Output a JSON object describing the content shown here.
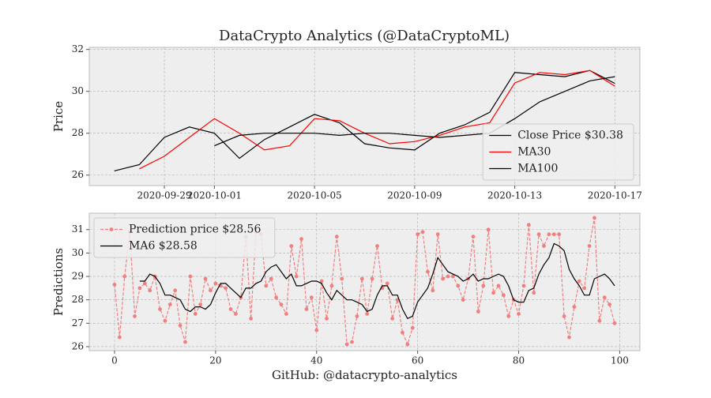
{
  "title": "DataCrypto Analytics (@DataCryptoML)",
  "chart_data": [
    {
      "type": "line",
      "ylabel": "Price",
      "grid": true,
      "legend": "lower right",
      "x": [
        "2020-09-27",
        "2020-09-28",
        "2020-09-29",
        "2020-09-30",
        "2020-10-01",
        "2020-10-02",
        "2020-10-03",
        "2020-10-04",
        "2020-10-05",
        "2020-10-06",
        "2020-10-07",
        "2020-10-08",
        "2020-10-09",
        "2020-10-10",
        "2020-10-11",
        "2020-10-12",
        "2020-10-13",
        "2020-10-14",
        "2020-10-15",
        "2020-10-16",
        "2020-10-17"
      ],
      "xlim": [
        "2020-09-26",
        "2020-10-18"
      ],
      "xticks": [
        "2020-09-29",
        "2020-10-01",
        "2020-10-05",
        "2020-10-09",
        "2020-10-13",
        "2020-10-17"
      ],
      "ylim": [
        25.5,
        32.1
      ],
      "yticks": [
        26,
        28,
        30,
        32
      ],
      "series": [
        {
          "name": "Close Price $30.38",
          "color": "#000000",
          "values": [
            26.2,
            26.5,
            27.8,
            28.3,
            28.0,
            26.8,
            27.7,
            28.3,
            28.9,
            28.5,
            27.5,
            27.3,
            27.2,
            28.0,
            28.4,
            29.0,
            30.9,
            30.8,
            30.7,
            31.0,
            30.38
          ]
        },
        {
          "name": "MA30",
          "color": "#ff0000",
          "values": [
            null,
            26.3,
            26.9,
            27.8,
            28.7,
            28.0,
            27.2,
            27.4,
            28.7,
            28.6,
            28.0,
            27.5,
            27.6,
            27.9,
            28.3,
            28.5,
            30.4,
            30.9,
            30.8,
            31.0,
            30.25
          ]
        },
        {
          "name": "MA100",
          "color": "#000000",
          "values": [
            null,
            null,
            null,
            null,
            27.4,
            27.9,
            28.0,
            28.0,
            28.0,
            27.9,
            28.0,
            28.0,
            27.9,
            27.8,
            27.9,
            28.0,
            28.7,
            29.5,
            30.0,
            30.5,
            30.7
          ]
        }
      ]
    },
    {
      "type": "line",
      "ylabel": "Predictions",
      "xlabel": "GitHub: @datacrypto-analytics",
      "grid": true,
      "legend": "upper left",
      "x": [
        0,
        1,
        2,
        3,
        4,
        5,
        6,
        7,
        8,
        9,
        10,
        11,
        12,
        13,
        14,
        15,
        16,
        17,
        18,
        19,
        20,
        21,
        22,
        23,
        24,
        25,
        26,
        27,
        28,
        29,
        30,
        31,
        32,
        33,
        34,
        35,
        36,
        37,
        38,
        39,
        40,
        41,
        42,
        43,
        44,
        45,
        46,
        47,
        48,
        49,
        50,
        51,
        52,
        53,
        54,
        55,
        56,
        57,
        58,
        59,
        60,
        61,
        62,
        63,
        64,
        65,
        66,
        67,
        68,
        69,
        70,
        71,
        72,
        73,
        74,
        75,
        76,
        77,
        78,
        79,
        80,
        81,
        82,
        83,
        84,
        85,
        86,
        87,
        88,
        89,
        90,
        91,
        92,
        93,
        94,
        95,
        96,
        97,
        98,
        99
      ],
      "xlim": [
        -5,
        104
      ],
      "xticks": [
        0,
        20,
        40,
        60,
        80,
        100
      ],
      "ylim": [
        25.83,
        31.7
      ],
      "yticks": [
        26,
        27,
        28,
        29,
        30,
        31
      ],
      "series": [
        {
          "name": "Prediction price $28.56",
          "color": "#f08080",
          "linestyle": "dashed",
          "marker": true,
          "values": [
            28.65,
            26.4,
            29.0,
            30.9,
            27.3,
            28.5,
            28.7,
            28.4,
            29.0,
            27.6,
            27.1,
            27.8,
            28.4,
            26.9,
            26.2,
            29.0,
            27.4,
            27.8,
            28.9,
            28.4,
            28.7,
            28.6,
            28.5,
            27.6,
            27.4,
            28.1,
            30.7,
            27.2,
            30.9,
            30.8,
            28.6,
            28.9,
            28.1,
            27.8,
            27.4,
            30.3,
            29.0,
            30.6,
            27.6,
            28.1,
            26.7,
            28.8,
            27.2,
            28.6,
            30.7,
            28.9,
            26.1,
            26.2,
            27.3,
            28.9,
            27.4,
            28.9,
            30.3,
            28.5,
            28.7,
            27.2,
            28.0,
            26.6,
            26.1,
            26.8,
            30.8,
            30.9,
            29.2,
            28.4,
            30.8,
            28.9,
            29.0,
            29.0,
            28.6,
            28.0,
            28.9,
            30.7,
            27.5,
            28.6,
            31.0,
            28.3,
            28.6,
            28.2,
            27.3,
            28.0,
            27.4,
            28.6,
            31.2,
            28.3,
            30.8,
            30.3,
            30.8,
            30.8,
            30.8,
            27.3,
            26.4,
            27.7,
            28.8,
            28.5,
            30.3,
            31.5,
            27.1,
            28.1,
            27.8,
            27.0
          ]
        },
        {
          "name": "MA6 $28.58",
          "color": "#000000",
          "values": [
            null,
            null,
            null,
            null,
            null,
            28.8,
            28.8,
            29.1,
            29.0,
            28.7,
            28.2,
            28.2,
            28.1,
            28.0,
            27.6,
            27.5,
            27.7,
            27.7,
            27.6,
            27.8,
            28.3,
            28.7,
            28.7,
            28.5,
            28.3,
            28.1,
            28.5,
            28.5,
            28.7,
            28.8,
            29.2,
            29.4,
            29.5,
            29.2,
            28.9,
            29.1,
            28.6,
            28.6,
            28.7,
            28.8,
            28.8,
            28.7,
            28.3,
            28.0,
            28.4,
            28.2,
            28.0,
            28.0,
            27.9,
            27.8,
            27.5,
            27.6,
            28.2,
            28.6,
            28.6,
            28.2,
            28.2,
            27.6,
            27.2,
            27.3,
            27.9,
            28.2,
            28.5,
            29.1,
            29.8,
            29.5,
            29.2,
            29.1,
            29.0,
            28.8,
            28.9,
            29.1,
            28.8,
            28.9,
            28.9,
            29.0,
            29.1,
            29.0,
            28.6,
            28.0,
            27.9,
            27.9,
            28.4,
            28.5,
            29.1,
            29.5,
            29.8,
            30.4,
            30.3,
            30.1,
            29.3,
            28.9,
            28.6,
            28.2,
            28.2,
            28.9,
            29.0,
            29.1,
            28.9,
            28.6
          ]
        }
      ]
    }
  ]
}
